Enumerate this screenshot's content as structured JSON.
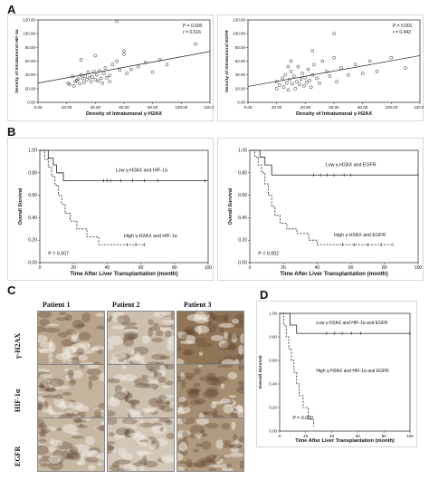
{
  "panels": {
    "A": "A",
    "B": "B",
    "C": "C",
    "D": "D"
  },
  "chart_data": [
    {
      "id": "A1",
      "type": "scatter",
      "xlabel": "Density of Intratumoral γ-H2AX",
      "ylabel": "Density of Intratumoral HIF-1α",
      "xticks": [
        "0.00",
        "20.00",
        "40.00",
        "60.00",
        "80.00",
        "100.00",
        "120.00"
      ],
      "yticks": [
        "0.00",
        "20.00",
        "40.00",
        "60.00",
        "80.00",
        "100.00",
        "120.00"
      ],
      "xlim": [
        0,
        120
      ],
      "ylim": [
        0,
        120
      ],
      "stat1": "P = 0.000",
      "stat2": "r = 0.516",
      "fit": [
        [
          0,
          28
        ],
        [
          120,
          74
        ]
      ],
      "points": [
        [
          21,
          28
        ],
        [
          24,
          38
        ],
        [
          26,
          30
        ],
        [
          27,
          32
        ],
        [
          28,
          34
        ],
        [
          29,
          27
        ],
        [
          30,
          40
        ],
        [
          31,
          35
        ],
        [
          32,
          29
        ],
        [
          33,
          38
        ],
        [
          34,
          33
        ],
        [
          35,
          44
        ],
        [
          36,
          36
        ],
        [
          37,
          30
        ],
        [
          38,
          37
        ],
        [
          39,
          45
        ],
        [
          40,
          33
        ],
        [
          41,
          40
        ],
        [
          42,
          31
        ],
        [
          43,
          46
        ],
        [
          44,
          35
        ],
        [
          45,
          28
        ],
        [
          46,
          42
        ],
        [
          47,
          50
        ],
        [
          48,
          36
        ],
        [
          50,
          39
        ],
        [
          52,
          55
        ],
        [
          55,
          60
        ],
        [
          57,
          47
        ],
        [
          60,
          70
        ],
        [
          62,
          42
        ],
        [
          65,
          48
        ],
        [
          70,
          52
        ],
        [
          75,
          58
        ],
        [
          80,
          44
        ],
        [
          85,
          62
        ],
        [
          90,
          55
        ],
        [
          55,
          118
        ],
        [
          60,
          75
        ],
        [
          40,
          68
        ],
        [
          30,
          62
        ],
        [
          110,
          85
        ],
        [
          22,
          26
        ],
        [
          25,
          24
        ],
        [
          50,
          30
        ]
      ]
    },
    {
      "id": "A2",
      "type": "scatter",
      "xlabel": "Density of Intratumoral γ-H2AX",
      "ylabel": "Density of Intratumoral EGFR",
      "xticks": [
        "0.00",
        "20.00",
        "40.00",
        "60.00",
        "80.00",
        "100.00",
        "120.00"
      ],
      "yticks": [
        "0.00",
        "20.00",
        "40.00",
        "60.00",
        "80.00",
        "100.00",
        "120.00"
      ],
      "xlim": [
        0,
        120
      ],
      "ylim": [
        0,
        120
      ],
      "stat1": "P = 0.001",
      "stat2": "r = 0.442",
      "fit": [
        [
          0,
          23
        ],
        [
          120,
          68
        ]
      ],
      "points": [
        [
          20,
          30
        ],
        [
          22,
          25
        ],
        [
          24,
          35
        ],
        [
          25,
          22
        ],
        [
          26,
          40
        ],
        [
          27,
          28
        ],
        [
          28,
          18
        ],
        [
          29,
          33
        ],
        [
          30,
          45
        ],
        [
          31,
          27
        ],
        [
          32,
          38
        ],
        [
          33,
          20
        ],
        [
          34,
          30
        ],
        [
          35,
          52
        ],
        [
          36,
          26
        ],
        [
          37,
          34
        ],
        [
          38,
          42
        ],
        [
          39,
          24
        ],
        [
          40,
          36
        ],
        [
          41,
          29
        ],
        [
          42,
          48
        ],
        [
          43,
          32
        ],
        [
          44,
          22
        ],
        [
          45,
          40
        ],
        [
          46,
          55
        ],
        [
          48,
          35
        ],
        [
          50,
          28
        ],
        [
          52,
          60
        ],
        [
          55,
          45
        ],
        [
          57,
          38
        ],
        [
          60,
          65
        ],
        [
          62,
          30
        ],
        [
          65,
          50
        ],
        [
          70,
          40
        ],
        [
          75,
          55
        ],
        [
          80,
          42
        ],
        [
          85,
          60
        ],
        [
          90,
          45
        ],
        [
          100,
          65
        ],
        [
          110,
          50
        ],
        [
          30,
          60
        ],
        [
          45,
          75
        ],
        [
          60,
          100
        ],
        [
          20,
          20
        ],
        [
          28,
          52
        ]
      ]
    },
    {
      "id": "B1",
      "type": "line",
      "xlabel": "Time After Liver Transplantation (month)",
      "ylabel": "Overall Survival",
      "xticks": [
        "0",
        "20",
        "40",
        "60",
        "80",
        "100"
      ],
      "yticks": [
        "0.00",
        "0.20",
        "0.40",
        "0.60",
        "0.80",
        "1.00"
      ],
      "xlim": [
        0,
        100
      ],
      "ylim": [
        0,
        1
      ],
      "annotation": "P = 0.007",
      "series": [
        {
          "name": "Low γ-H2AX and HIF-1α",
          "style": "solid",
          "steps": [
            [
              0,
              1
            ],
            [
              5,
              0.93
            ],
            [
              8,
              0.87
            ],
            [
              10,
              0.8
            ],
            [
              14,
              0.73
            ],
            [
              100,
              0.73
            ]
          ],
          "censor": [
            38,
            40,
            42,
            48,
            55,
            62,
            70,
            98
          ]
        },
        {
          "name": "High γ-H2AX and HIF-1α",
          "style": "dashed",
          "steps": [
            [
              0,
              1
            ],
            [
              3,
              0.92
            ],
            [
              5,
              0.85
            ],
            [
              7,
              0.77
            ],
            [
              9,
              0.69
            ],
            [
              11,
              0.6
            ],
            [
              13,
              0.52
            ],
            [
              15,
              0.44
            ],
            [
              18,
              0.37
            ],
            [
              22,
              0.3
            ],
            [
              28,
              0.23
            ],
            [
              35,
              0.16
            ],
            [
              62,
              0.16
            ]
          ],
          "censor": [
            52,
            57,
            62
          ]
        }
      ]
    },
    {
      "id": "B2",
      "type": "line",
      "xlabel": "Time After Liver Transplantation (month)",
      "ylabel": "Overall Survival",
      "xticks": [
        "0",
        "20",
        "40",
        "60",
        "80",
        "100"
      ],
      "yticks": [
        "0.00",
        "0.20",
        "0.40",
        "0.60",
        "0.80",
        "1.00"
      ],
      "xlim": [
        0,
        100
      ],
      "ylim": [
        0,
        1
      ],
      "annotation": "P = 0.002",
      "series": [
        {
          "name": "Low γ-H2AX and EGFR",
          "style": "solid",
          "steps": [
            [
              0,
              1
            ],
            [
              6,
              0.94
            ],
            [
              9,
              0.87
            ],
            [
              13,
              0.78
            ],
            [
              100,
              0.78
            ]
          ],
          "censor": [
            38,
            42,
            46,
            50,
            56,
            60,
            100
          ]
        },
        {
          "name": "High γ-H2AX and EGFR",
          "style": "dashed",
          "steps": [
            [
              0,
              1
            ],
            [
              3,
              0.94
            ],
            [
              5,
              0.87
            ],
            [
              7,
              0.8
            ],
            [
              9,
              0.7
            ],
            [
              11,
              0.6
            ],
            [
              13,
              0.5
            ],
            [
              15,
              0.42
            ],
            [
              18,
              0.35
            ],
            [
              22,
              0.3
            ],
            [
              28,
              0.26
            ],
            [
              35,
              0.2
            ],
            [
              40,
              0.16
            ],
            [
              85,
              0.16
            ]
          ],
          "censor": [
            55,
            62,
            70,
            78,
            85
          ]
        }
      ]
    },
    {
      "id": "D",
      "type": "line",
      "xlabel": "Time After Liver Transplantation (month)",
      "ylabel": "Overall Survival",
      "xticks": [
        "0",
        "20",
        "40",
        "60",
        "80",
        "100"
      ],
      "yticks": [
        "0.00",
        "0.20",
        "0.40",
        "0.60",
        "0.80",
        "1.00"
      ],
      "xlim": [
        0,
        100
      ],
      "ylim": [
        0,
        1
      ],
      "annotation": "P = 0.000",
      "series": [
        {
          "name": "Low γ-H2AX and HIF-1α and EGFR",
          "style": "solid",
          "steps": [
            [
              0,
              1
            ],
            [
              8,
              0.9
            ],
            [
              13,
              0.83
            ],
            [
              100,
              0.83
            ]
          ],
          "censor": [
            36,
            42,
            48,
            55,
            62,
            100
          ]
        },
        {
          "name": "High γ-H2AX and HIF-1α and EGFR",
          "style": "dashed",
          "steps": [
            [
              0,
              1
            ],
            [
              3,
              0.9
            ],
            [
              5,
              0.8
            ],
            [
              7,
              0.7
            ],
            [
              9,
              0.6
            ],
            [
              11,
              0.5
            ],
            [
              13,
              0.4
            ],
            [
              15,
              0.3
            ],
            [
              18,
              0.2
            ],
            [
              22,
              0.1
            ],
            [
              26,
              0.04
            ]
          ],
          "censor": []
        }
      ]
    }
  ],
  "micro": {
    "cols": [
      "Patient 1",
      "Patient 2",
      "Patient 3"
    ],
    "rows": [
      "γ-H2AX",
      "HIF-1α",
      "EGFR"
    ],
    "tints": [
      [
        "#b9a58c",
        "#cdbfae",
        "#8f7555"
      ],
      [
        "#c4b49e",
        "#cbbfae",
        "#a58d6f"
      ],
      [
        "#c6b7a2",
        "#d2c6b6",
        "#b19b80"
      ]
    ]
  }
}
